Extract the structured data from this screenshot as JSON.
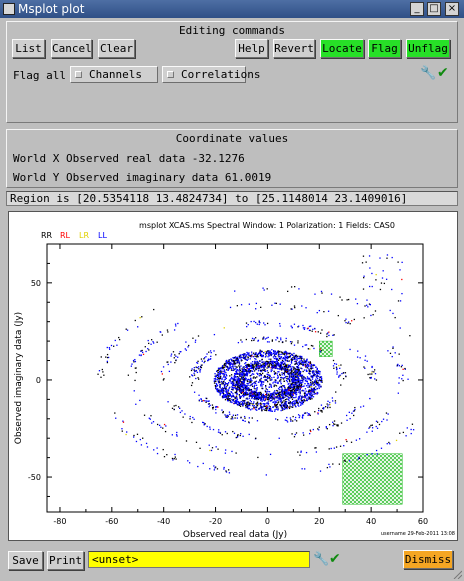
{
  "window": {
    "title": "Msplot plot",
    "buttons": {
      "minimize": "_",
      "maximize": "□",
      "close": "×"
    }
  },
  "editing": {
    "heading": "Editing commands",
    "buttons": {
      "list": "List",
      "cancel": "Cancel",
      "clear": "Clear",
      "help": "Help",
      "revert": "Revert",
      "locate": "Locate",
      "flag": "Flag",
      "unflag": "Unflag"
    },
    "flag_all_label": "Flag all",
    "channels": "Channels",
    "correlations": "Correlations"
  },
  "coordinates": {
    "heading": "Coordinate values",
    "world_x": "World X  Observed real data -32.1276",
    "world_y": "World Y  Observed imaginary data 61.0019"
  },
  "region": "Region is [20.5354118 13.4824734]  to [25.1148014 23.1409016]",
  "plot": {
    "title": "msplot XCAS.ms Spectral Window: 1 Polarization: 1 Fields: CAS0",
    "stamp": "username 29-Feb-2011 13:08",
    "legend": [
      {
        "label": "RR",
        "color": "#000000"
      },
      {
        "label": "RL",
        "color": "#ff0000"
      },
      {
        "label": "LR",
        "color": "#e0d000"
      },
      {
        "label": "LL",
        "color": "#0000ff"
      }
    ]
  },
  "chart_data": {
    "type": "scatter",
    "title": "msplot XCAS.ms Spectral Window: 1 Polarization: 1 Fields: CAS0",
    "xlabel": "Observed real data (Jy)",
    "ylabel": "Observed imaginary data (Jy)",
    "xlim": [
      -85,
      60
    ],
    "ylim": [
      -68,
      70
    ],
    "xticks": [
      -80,
      -60,
      -40,
      -20,
      0,
      20,
      40,
      60
    ],
    "yticks": [
      -50,
      0,
      50
    ],
    "series": [
      {
        "name": "RR",
        "color": "#000000"
      },
      {
        "name": "RL",
        "color": "#ff0000"
      },
      {
        "name": "LR",
        "color": "#e0d000"
      },
      {
        "name": "LL",
        "color": "#0000ff"
      }
    ],
    "flagged_regions": [
      {
        "x": [
          20,
          25
        ],
        "y": [
          12,
          20
        ],
        "color": "#22bb22"
      },
      {
        "x": [
          29,
          52
        ],
        "y": [
          -64,
          -38
        ],
        "color": "#22bb22"
      }
    ],
    "grid": false,
    "legend_placement": "top-left"
  },
  "bottom": {
    "save": "Save",
    "print": "Print",
    "input_value": "<unset>",
    "dismiss": "Dismiss"
  },
  "icons": {
    "wrench": "wrench-icon",
    "check": "check-icon",
    "window": "window-menu-icon"
  }
}
